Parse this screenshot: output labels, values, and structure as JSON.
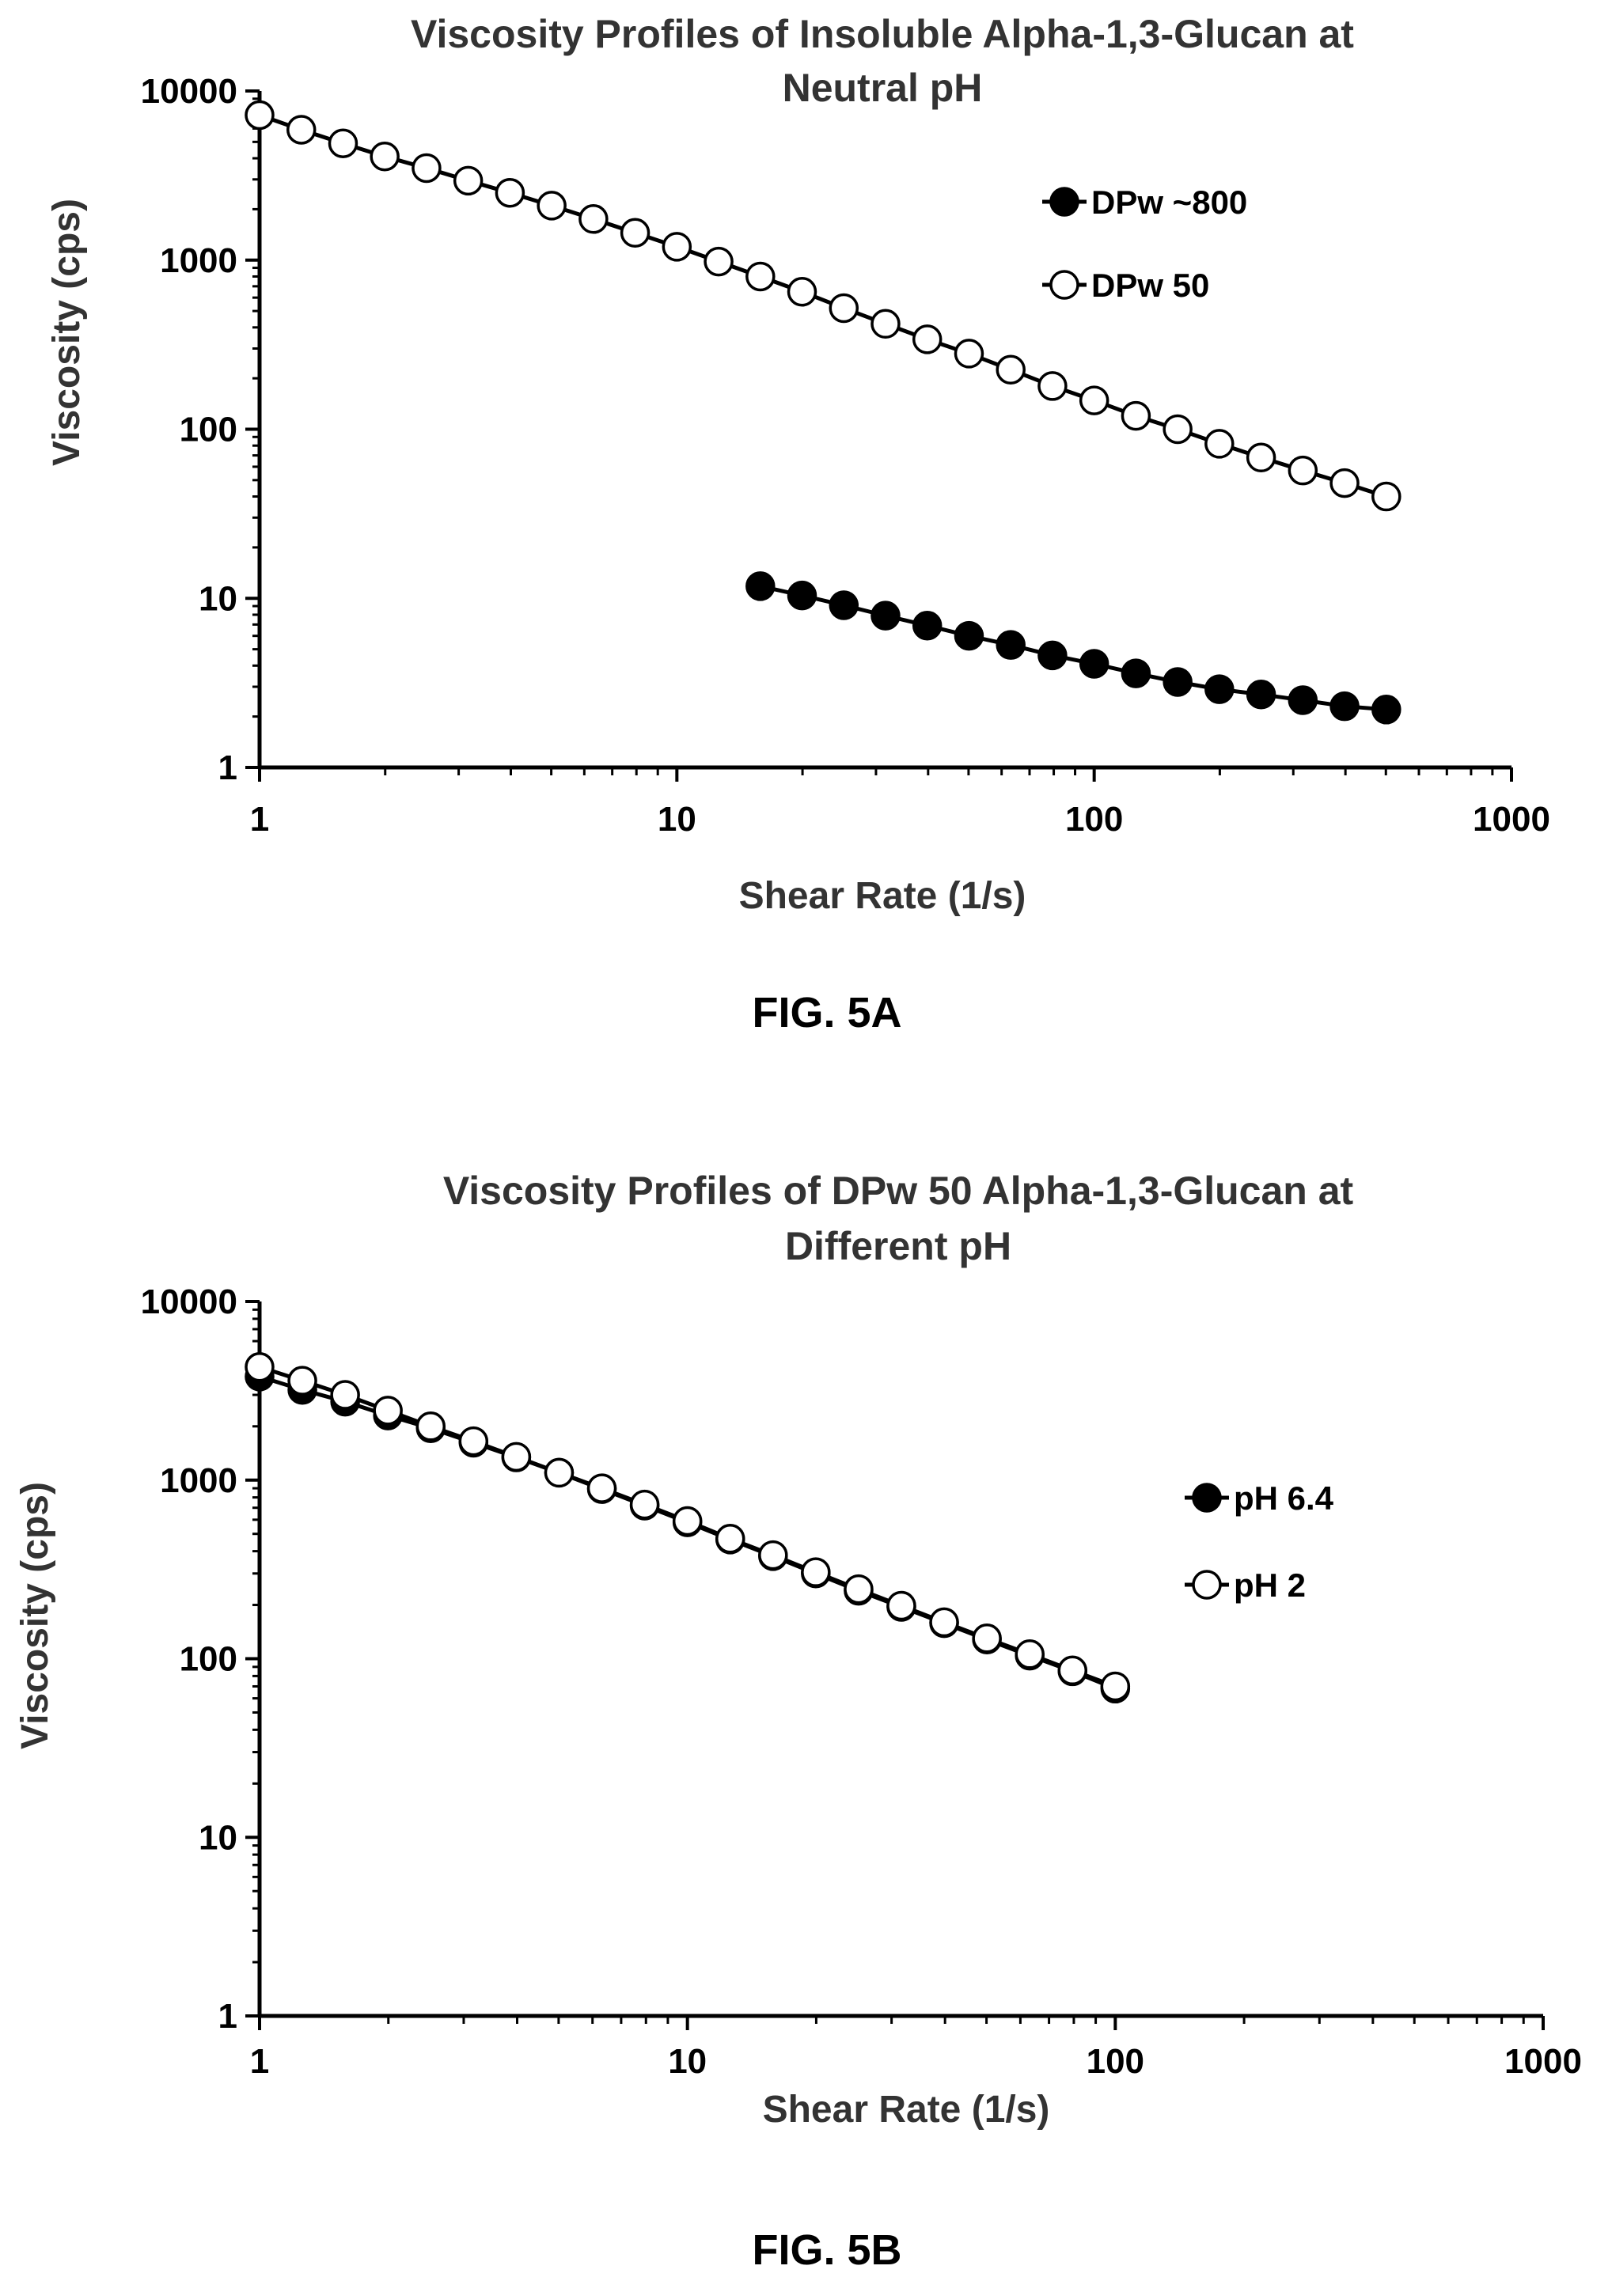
{
  "figures": [
    {
      "caption": "FIG. 5A"
    },
    {
      "caption": "FIG. 5B"
    }
  ],
  "chart_data": [
    {
      "type": "scatter",
      "title_lines": [
        "Viscosity Profiles of Insoluble Alpha-1,3-Glucan at",
        "Neutral pH"
      ],
      "xlabel": "Shear Rate (1/s)",
      "ylabel": "Viscosity (cps)",
      "x_scale": "log",
      "y_scale": "log",
      "xlim": [
        1,
        1000
      ],
      "ylim": [
        1,
        10000
      ],
      "x_ticks": [
        "1",
        "10",
        "100",
        "1000"
      ],
      "y_ticks": [
        "1",
        "10",
        "100",
        "1000",
        "10000"
      ],
      "legend_position": "top-right",
      "series": [
        {
          "name": "DPw ~800",
          "marker": "filled-circle",
          "x": [
            15.85,
            19.95,
            25.12,
            31.62,
            39.81,
            50.12,
            63.1,
            79.43,
            100,
            125.9,
            158.5,
            199.5,
            251.2,
            316.2,
            398.1,
            501.2
          ],
          "y": [
            11.8,
            10.4,
            9.1,
            7.9,
            6.9,
            6.0,
            5.3,
            4.6,
            4.1,
            3.6,
            3.2,
            2.9,
            2.7,
            2.5,
            2.3,
            2.2
          ]
        },
        {
          "name": "DPw 50",
          "marker": "open-circle",
          "x": [
            1,
            1.259,
            1.585,
            1.995,
            2.512,
            3.162,
            3.981,
            5.012,
            6.31,
            7.943,
            10,
            12.59,
            15.85,
            19.95,
            25.12,
            31.62,
            39.81,
            50.12,
            63.1,
            79.43,
            100,
            125.9,
            158.5,
            199.5,
            251.2,
            316.2,
            398.1,
            501.2
          ],
          "y": [
            7200,
            5900,
            4900,
            4100,
            3500,
            2950,
            2500,
            2100,
            1750,
            1450,
            1200,
            980,
            800,
            650,
            520,
            420,
            340,
            280,
            225,
            180,
            148,
            120,
            100,
            82,
            68,
            57,
            48,
            40
          ]
        }
      ]
    },
    {
      "type": "scatter",
      "title_lines": [
        "Viscosity Profiles of DPw 50 Alpha-1,3-Glucan at",
        "Different pH"
      ],
      "xlabel": "Shear Rate (1/s)",
      "ylabel": "Viscosity (cps)",
      "x_scale": "log",
      "y_scale": "log",
      "xlim": [
        1,
        1000
      ],
      "ylim": [
        1,
        10000
      ],
      "x_ticks": [
        "1",
        "10",
        "100",
        "1000"
      ],
      "y_ticks": [
        "1",
        "10",
        "100",
        "1000",
        "10000"
      ],
      "legend_position": "right",
      "series": [
        {
          "name": "pH 6.4",
          "marker": "filled-circle",
          "x": [
            1,
            1.259,
            1.585,
            1.995,
            2.512,
            3.162,
            3.981,
            5.012,
            6.31,
            7.943,
            10,
            12.59,
            15.85,
            19.95,
            25.12,
            31.62,
            39.81,
            50.12,
            63.1,
            79.43,
            100
          ],
          "y": [
            3800,
            3200,
            2750,
            2300,
            1950,
            1620,
            1340,
            1100,
            890,
            720,
            580,
            465,
            375,
            300,
            240,
            195,
            158,
            128,
            104,
            85,
            68
          ]
        },
        {
          "name": "pH 2",
          "marker": "open-circle",
          "x": [
            1,
            1.259,
            1.585,
            1.995,
            2.512,
            3.162,
            3.981,
            5.012,
            6.31,
            7.943,
            10,
            12.59,
            15.85,
            19.95,
            25.12,
            31.62,
            39.81,
            50.12,
            63.1,
            79.43,
            100
          ],
          "y": [
            4300,
            3600,
            3000,
            2450,
            2000,
            1650,
            1350,
            1100,
            900,
            730,
            590,
            470,
            380,
            305,
            245,
            198,
            160,
            130,
            106,
            86,
            70
          ]
        }
      ]
    }
  ]
}
